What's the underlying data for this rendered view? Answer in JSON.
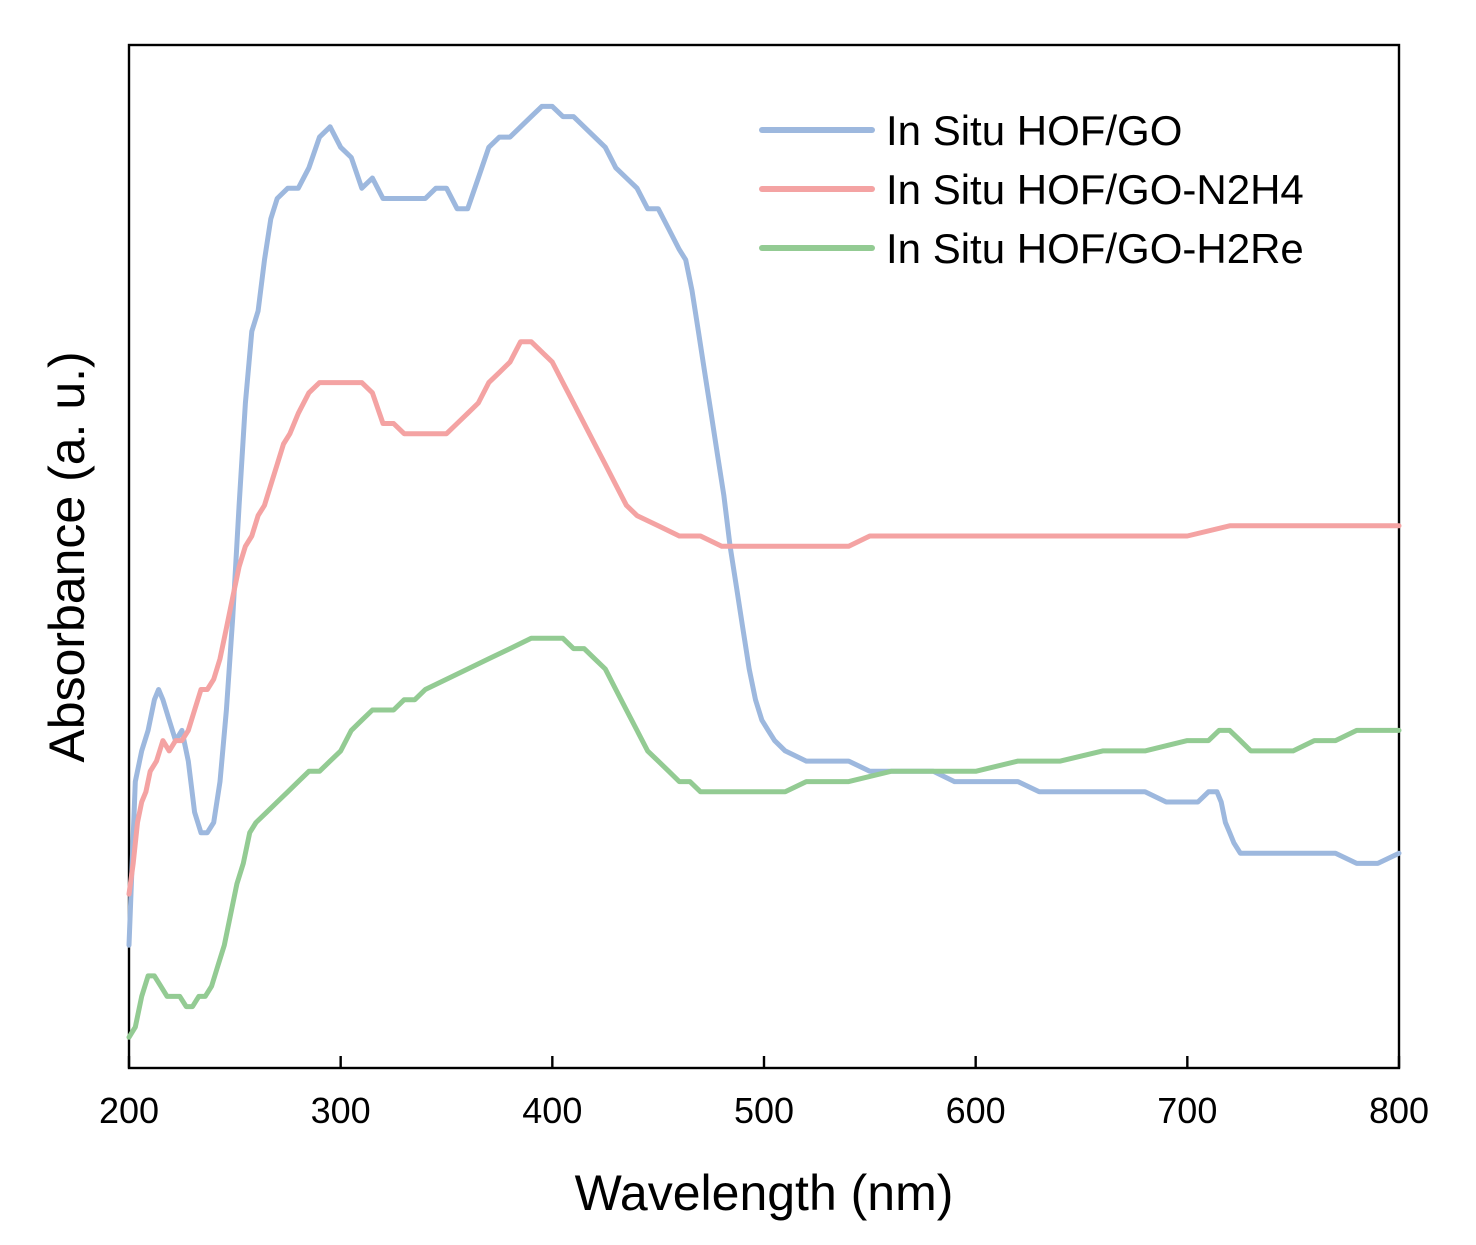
{
  "chart_data": {
    "type": "line",
    "title": "",
    "xlabel": "Wavelength (nm)",
    "ylabel": "Absorbance (a. u.)",
    "xlim": [
      200,
      800
    ],
    "ylim": [
      0,
      1
    ],
    "x_ticks": [
      "200",
      "300",
      "400",
      "500",
      "600",
      "700",
      "800"
    ],
    "y_ticks_shown": false,
    "grid": false,
    "legend_position": "top-right",
    "series": [
      {
        "name": "In Situ HOF/GO",
        "color": "#9db8de",
        "x": [
          200,
          203,
          206,
          209,
          212,
          214,
          216,
          219,
          222,
          225,
          228,
          231,
          234,
          237,
          240,
          243,
          246,
          249,
          252,
          255,
          258,
          261,
          264,
          267,
          270,
          275,
          280,
          285,
          290,
          295,
          300,
          305,
          310,
          315,
          320,
          325,
          330,
          335,
          340,
          345,
          350,
          355,
          360,
          365,
          370,
          375,
          380,
          385,
          390,
          395,
          400,
          405,
          410,
          415,
          420,
          425,
          430,
          435,
          440,
          445,
          450,
          455,
          460,
          463,
          466,
          469,
          472,
          475,
          478,
          481,
          484,
          487,
          490,
          493,
          496,
          499,
          502,
          505,
          510,
          520,
          530,
          540,
          550,
          560,
          570,
          580,
          590,
          600,
          610,
          620,
          630,
          640,
          650,
          660,
          670,
          680,
          690,
          700,
          705,
          710,
          714,
          716,
          718,
          720,
          722,
          725,
          730,
          740,
          750,
          760,
          770,
          780,
          790,
          800
        ],
        "values": [
          0.12,
          0.28,
          0.31,
          0.33,
          0.36,
          0.37,
          0.36,
          0.34,
          0.32,
          0.33,
          0.3,
          0.25,
          0.23,
          0.23,
          0.24,
          0.28,
          0.35,
          0.44,
          0.55,
          0.65,
          0.72,
          0.74,
          0.79,
          0.83,
          0.85,
          0.86,
          0.86,
          0.88,
          0.91,
          0.92,
          0.9,
          0.89,
          0.86,
          0.87,
          0.85,
          0.85,
          0.85,
          0.85,
          0.85,
          0.86,
          0.86,
          0.84,
          0.84,
          0.87,
          0.9,
          0.91,
          0.91,
          0.92,
          0.93,
          0.94,
          0.94,
          0.93,
          0.93,
          0.92,
          0.91,
          0.9,
          0.88,
          0.87,
          0.86,
          0.84,
          0.84,
          0.82,
          0.8,
          0.79,
          0.76,
          0.72,
          0.68,
          0.64,
          0.6,
          0.56,
          0.51,
          0.47,
          0.43,
          0.39,
          0.36,
          0.34,
          0.33,
          0.32,
          0.31,
          0.3,
          0.3,
          0.3,
          0.29,
          0.29,
          0.29,
          0.29,
          0.28,
          0.28,
          0.28,
          0.28,
          0.27,
          0.27,
          0.27,
          0.27,
          0.27,
          0.27,
          0.26,
          0.26,
          0.26,
          0.27,
          0.27,
          0.26,
          0.24,
          0.23,
          0.22,
          0.21,
          0.21,
          0.21,
          0.21,
          0.21,
          0.21,
          0.2,
          0.2,
          0.21
        ]
      },
      {
        "name": "In Situ HOF/GO-N2H4",
        "color": "#f4a3a3",
        "x": [
          200,
          202,
          204,
          206,
          208,
          210,
          213,
          216,
          219,
          222,
          225,
          228,
          231,
          234,
          237,
          240,
          243,
          246,
          249,
          252,
          255,
          258,
          261,
          264,
          267,
          270,
          273,
          276,
          280,
          285,
          290,
          295,
          300,
          305,
          310,
          315,
          320,
          325,
          330,
          335,
          340,
          345,
          350,
          355,
          360,
          365,
          370,
          375,
          380,
          385,
          390,
          395,
          400,
          405,
          410,
          415,
          420,
          425,
          430,
          435,
          440,
          450,
          460,
          470,
          480,
          490,
          500,
          510,
          520,
          530,
          540,
          550,
          560,
          570,
          580,
          590,
          600,
          620,
          640,
          660,
          680,
          700,
          720,
          740,
          760,
          780,
          800
        ],
        "values": [
          0.17,
          0.2,
          0.24,
          0.26,
          0.27,
          0.29,
          0.3,
          0.32,
          0.31,
          0.32,
          0.32,
          0.33,
          0.35,
          0.37,
          0.37,
          0.38,
          0.4,
          0.43,
          0.46,
          0.49,
          0.51,
          0.52,
          0.54,
          0.55,
          0.57,
          0.59,
          0.61,
          0.62,
          0.64,
          0.66,
          0.67,
          0.67,
          0.67,
          0.67,
          0.67,
          0.66,
          0.63,
          0.63,
          0.62,
          0.62,
          0.62,
          0.62,
          0.62,
          0.63,
          0.64,
          0.65,
          0.67,
          0.68,
          0.69,
          0.71,
          0.71,
          0.7,
          0.69,
          0.67,
          0.65,
          0.63,
          0.61,
          0.59,
          0.57,
          0.55,
          0.54,
          0.53,
          0.52,
          0.52,
          0.51,
          0.51,
          0.51,
          0.51,
          0.51,
          0.51,
          0.51,
          0.52,
          0.52,
          0.52,
          0.52,
          0.52,
          0.52,
          0.52,
          0.52,
          0.52,
          0.52,
          0.52,
          0.53,
          0.53,
          0.53,
          0.53,
          0.53
        ]
      },
      {
        "name": "In Situ HOF/GO-H2Re",
        "color": "#93cb93",
        "x": [
          200,
          203,
          206,
          209,
          212,
          215,
          218,
          221,
          224,
          227,
          230,
          233,
          236,
          239,
          242,
          245,
          248,
          251,
          254,
          257,
          260,
          265,
          270,
          275,
          280,
          285,
          290,
          295,
          300,
          305,
          310,
          315,
          320,
          325,
          330,
          335,
          340,
          350,
          360,
          370,
          380,
          390,
          395,
          400,
          405,
          410,
          415,
          420,
          425,
          430,
          435,
          440,
          445,
          450,
          455,
          460,
          465,
          470,
          480,
          490,
          500,
          510,
          520,
          540,
          560,
          580,
          600,
          620,
          640,
          660,
          680,
          700,
          710,
          715,
          720,
          725,
          730,
          740,
          750,
          760,
          770,
          780,
          790,
          800
        ],
        "values": [
          0.03,
          0.04,
          0.07,
          0.09,
          0.09,
          0.08,
          0.07,
          0.07,
          0.07,
          0.06,
          0.06,
          0.07,
          0.07,
          0.08,
          0.1,
          0.12,
          0.15,
          0.18,
          0.2,
          0.23,
          0.24,
          0.25,
          0.26,
          0.27,
          0.28,
          0.29,
          0.29,
          0.3,
          0.31,
          0.33,
          0.34,
          0.35,
          0.35,
          0.35,
          0.36,
          0.36,
          0.37,
          0.38,
          0.39,
          0.4,
          0.41,
          0.42,
          0.42,
          0.42,
          0.42,
          0.41,
          0.41,
          0.4,
          0.39,
          0.37,
          0.35,
          0.33,
          0.31,
          0.3,
          0.29,
          0.28,
          0.28,
          0.27,
          0.27,
          0.27,
          0.27,
          0.27,
          0.28,
          0.28,
          0.29,
          0.29,
          0.29,
          0.3,
          0.3,
          0.31,
          0.31,
          0.32,
          0.32,
          0.33,
          0.33,
          0.32,
          0.31,
          0.31,
          0.31,
          0.32,
          0.32,
          0.33,
          0.33,
          0.33
        ]
      }
    ]
  }
}
